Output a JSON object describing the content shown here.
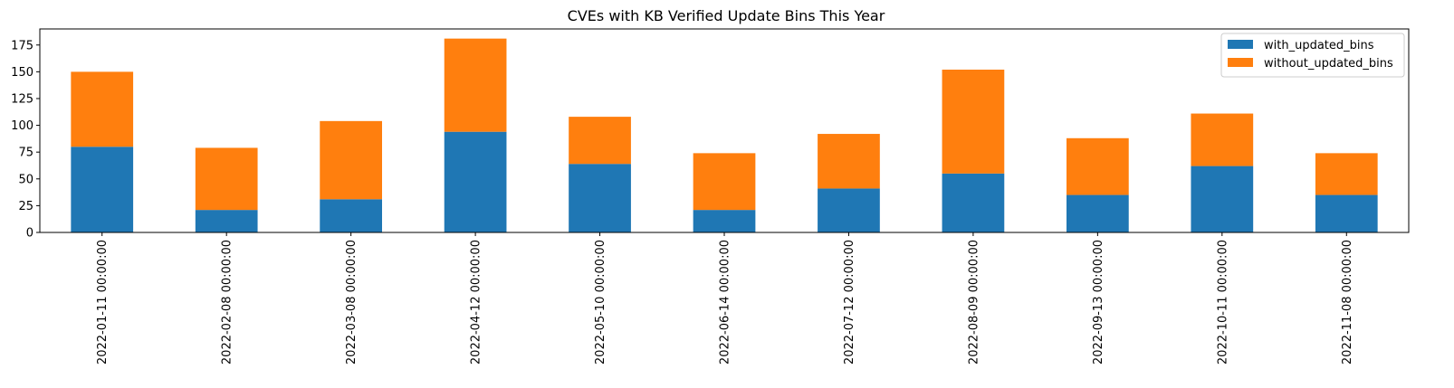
{
  "chart_data": {
    "type": "bar",
    "stacked": true,
    "title": "CVEs with KB Verified Update Bins This Year",
    "xlabel": "",
    "ylabel": "",
    "categories": [
      "2022-01-11 00:00:00",
      "2022-02-08 00:00:00",
      "2022-03-08 00:00:00",
      "2022-04-12 00:00:00",
      "2022-05-10 00:00:00",
      "2022-06-14 00:00:00",
      "2022-07-12 00:00:00",
      "2022-08-09 00:00:00",
      "2022-09-13 00:00:00",
      "2022-10-11 00:00:00",
      "2022-11-08 00:00:00"
    ],
    "series": [
      {
        "name": "with_updated_bins",
        "color": "#1f77b4",
        "values": [
          80,
          21,
          31,
          94,
          64,
          21,
          41,
          55,
          35,
          62,
          35
        ]
      },
      {
        "name": "without_updated_bins",
        "color": "#ff7f0e",
        "values": [
          70,
          58,
          73,
          87,
          44,
          53,
          51,
          97,
          53,
          49,
          39
        ]
      }
    ],
    "ylim": [
      0,
      190
    ],
    "yticks": [
      0,
      25,
      50,
      75,
      100,
      125,
      150,
      175
    ],
    "grid": false,
    "legend": "top-right"
  }
}
